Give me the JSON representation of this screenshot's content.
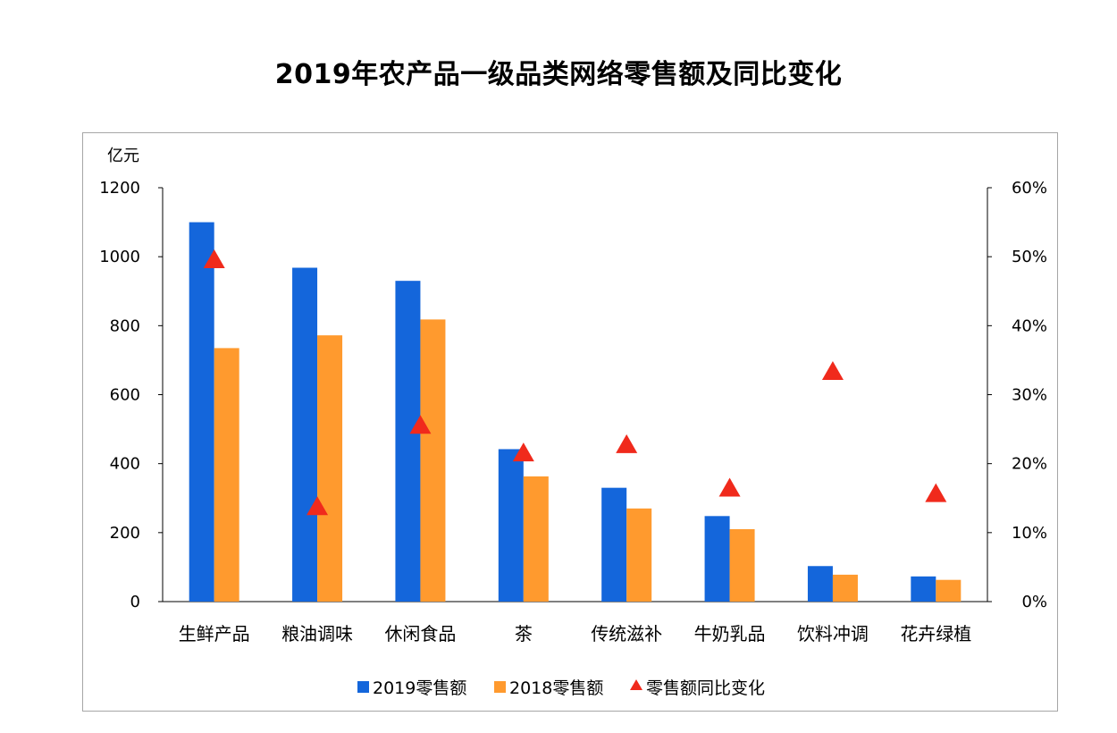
{
  "colors": {
    "series2019": "#1466DB",
    "series2018": "#FF9A2E",
    "yoy": "#F02A1C",
    "axis": "#000000",
    "frame": "#A6A6A6"
  },
  "chart_data": {
    "type": "bar",
    "title": "2019年农产品一级品类网络零售额及同比变化",
    "y_unit_label": "亿元",
    "categories": [
      "生鲜产品",
      "粮油调味",
      "休闲食品",
      "茶",
      "传统滋补",
      "牛奶乳品",
      "饮料冲调",
      "花卉绿植"
    ],
    "series": [
      {
        "name": "2019零售额",
        "type": "bar",
        "axis": "left",
        "values": [
          1100,
          968,
          930,
          442,
          330,
          248,
          103,
          73
        ]
      },
      {
        "name": "2018零售额",
        "type": "bar",
        "axis": "left",
        "values": [
          735,
          772,
          818,
          363,
          270,
          210,
          78,
          63
        ]
      },
      {
        "name": "零售额同比变化",
        "type": "scatter",
        "marker": "triangle",
        "axis": "right",
        "values": [
          0.495,
          0.137,
          0.255,
          0.215,
          0.227,
          0.164,
          0.333,
          0.156
        ]
      }
    ],
    "y_left": {
      "ylim": [
        0,
        1200
      ],
      "ticks": [
        "0",
        "200",
        "400",
        "600",
        "800",
        "1000",
        "1200"
      ]
    },
    "y_right": {
      "ylim": [
        0,
        0.6
      ],
      "ticks": [
        "0%",
        "10%",
        "20%",
        "30%",
        "40%",
        "50%",
        "60%"
      ]
    },
    "legend": {
      "placement": "bottom",
      "items": [
        "2019零售额",
        "2018零售额",
        "零售额同比变化"
      ]
    },
    "grid": false
  }
}
